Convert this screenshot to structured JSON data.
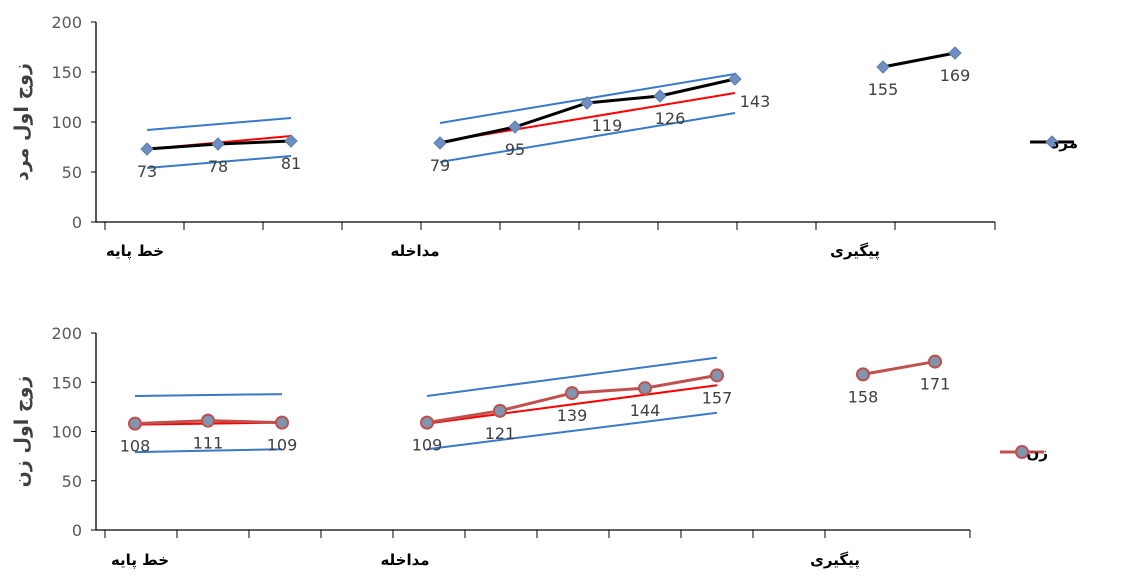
{
  "chart_data": [
    {
      "type": "line",
      "ylabel": "زوج اول مرد",
      "ylim": [
        0,
        200
      ],
      "yticks": [
        0,
        50,
        100,
        150,
        200
      ],
      "phases": [
        "خط پایه",
        "مداخله",
        "پیگیری"
      ],
      "legend": {
        "label": "مرد",
        "placement": "right"
      },
      "series": [
        {
          "name": "مرد",
          "color": "#000000",
          "marker_color": "#6E8FC0",
          "segments": [
            {
              "phase": "خط پایه",
              "values": [
                73,
                78,
                81
              ]
            },
            {
              "phase": "مداخله",
              "values": [
                79,
                95,
                119,
                126,
                143
              ]
            },
            {
              "phase": "پیگیری",
              "values": [
                155,
                169
              ]
            }
          ]
        }
      ],
      "trend_lines": [
        {
          "color": "#FF0000",
          "phase": "خط پایه",
          "from": 73,
          "to": 86
        },
        {
          "color": "#3A78C8",
          "phase": "خط پایه",
          "from": 92,
          "to": 104
        },
        {
          "color": "#3A78C8",
          "phase": "خط پایه",
          "from": 54,
          "to": 66
        },
        {
          "color": "#FF0000",
          "phase": "مداخله",
          "from": 80,
          "to": 129
        },
        {
          "color": "#3A78C8",
          "phase": "مداخله",
          "from": 99,
          "to": 148
        },
        {
          "color": "#3A78C8",
          "phase": "مداخله",
          "from": 60,
          "to": 109
        }
      ],
      "grid": false
    },
    {
      "type": "line",
      "ylabel": "زوج اول زن",
      "ylim": [
        0,
        200
      ],
      "yticks": [
        0,
        50,
        100,
        150,
        200
      ],
      "phases": [
        "خط پایه",
        "مداخله",
        "پیگیری"
      ],
      "legend": {
        "label": "زن",
        "placement": "right"
      },
      "series": [
        {
          "name": "زن",
          "color": "#C0504D",
          "marker_color": "#7F96B0",
          "segments": [
            {
              "phase": "خط پایه",
              "values": [
                108,
                111,
                109
              ]
            },
            {
              "phase": "مداخله",
              "values": [
                109,
                121,
                139,
                144,
                157
              ]
            },
            {
              "phase": "پیگیری",
              "values": [
                158,
                171
              ]
            }
          ]
        }
      ],
      "trend_lines": [
        {
          "color": "#FF0000",
          "phase": "خط پایه",
          "from": 107,
          "to": 109
        },
        {
          "color": "#3A78C8",
          "phase": "خط پایه",
          "from": 136,
          "to": 138
        },
        {
          "color": "#3A78C8",
          "phase": "خط پایه",
          "from": 79,
          "to": 82
        },
        {
          "color": "#FF0000",
          "phase": "مداخله",
          "from": 108,
          "to": 147
        },
        {
          "color": "#3A78C8",
          "phase": "مداخله",
          "from": 136,
          "to": 175
        },
        {
          "color": "#3A78C8",
          "phase": "مداخله",
          "from": 82,
          "to": 119
        }
      ],
      "grid": false
    }
  ]
}
